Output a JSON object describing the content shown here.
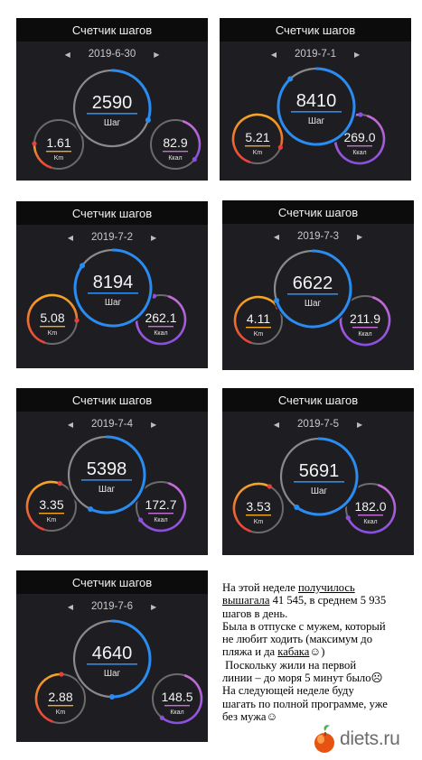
{
  "panels": [
    {
      "title": "Счетчик шагов",
      "date": "2019-6-30",
      "steps": "2590",
      "steps_label": "Шаг",
      "km": "1.61",
      "km_label": "Km",
      "kcal": "82.9",
      "kcal_label": "Ккал"
    },
    {
      "title": "Счетчик шагов",
      "date": "2019-7-1",
      "steps": "8410",
      "steps_label": "Шаг",
      "km": "5.21",
      "km_label": "Km",
      "kcal": "269.0",
      "kcal_label": "Ккал"
    },
    {
      "title": "Счетчик шагов",
      "date": "2019-7-2",
      "steps": "8194",
      "steps_label": "Шаг",
      "km": "5.08",
      "km_label": "Km",
      "kcal": "262.1",
      "kcal_label": "Ккал"
    },
    {
      "title": "Счетчик шагов",
      "date": "2019-7-3",
      "steps": "6622",
      "steps_label": "Шаг",
      "km": "4.11",
      "km_label": "Km",
      "kcal": "211.9",
      "kcal_label": "Ккал"
    },
    {
      "title": "Счетчик шагов",
      "date": "2019-7-4",
      "steps": "5398",
      "steps_label": "Шаг",
      "km": "3.35",
      "km_label": "Km",
      "kcal": "172.7",
      "kcal_label": "Ккал"
    },
    {
      "title": "Счетчик шагов",
      "date": "2019-7-5",
      "steps": "5691",
      "steps_label": "Шаг",
      "km": "3.53",
      "km_label": "Km",
      "kcal": "182.0",
      "kcal_label": "Ккал"
    },
    {
      "title": "Счетчик шагов",
      "date": "2019-7-6",
      "steps": "4640",
      "steps_label": "Шаг",
      "km": "2.88",
      "km_label": "Km",
      "kcal": "148.5",
      "kcal_label": "Ккал"
    }
  ],
  "progress": [
    {
      "steps": 0.3,
      "km": 0.2,
      "kcal": 0.3
    },
    {
      "steps": 0.88,
      "km": 0.75,
      "kcal": 0.95
    },
    {
      "steps": 0.85,
      "km": 0.7,
      "kcal": 0.9
    },
    {
      "steps": 0.7,
      "km": 0.6,
      "kcal": 0.75
    },
    {
      "steps": 0.57,
      "km": 0.5,
      "kcal": 0.6
    },
    {
      "steps": 0.6,
      "km": 0.52,
      "kcal": 0.63
    },
    {
      "steps": 0.5,
      "km": 0.45,
      "kcal": 0.55
    }
  ],
  "note": {
    "l1_a": "На этой неделе ",
    "l1_b": "получилось",
    "l2_a": "",
    "l2_b": "вышагала",
    "l2_c": "  41 545, в среднем 5 935",
    "l3": "шагов в день.",
    "l4": "Была в отпуске с мужем, который",
    "l5": "не любит ходить (максимум до",
    "l6_a": "пляжа и да ",
    "l6_b": "кабака",
    "l6_c": "☺)",
    "l7": " Поскольку жили на первой",
    "l8": "линии – до моря 5 минут было☹",
    "l9": "На следующей неделе буду",
    "l10": "шагать по полной программе, уже",
    "l11": "без мужа☺"
  },
  "logo": {
    "text": "diets.ru"
  },
  "colors": {
    "steps": "#2a8cf0",
    "km_start": "#f5a623",
    "km_end": "#e8413a",
    "kcal_start": "#c86dd7",
    "kcal_end": "#8a4fe0",
    "panel_bg": "#1e1e22",
    "title_bg": "#0c0c0c"
  }
}
